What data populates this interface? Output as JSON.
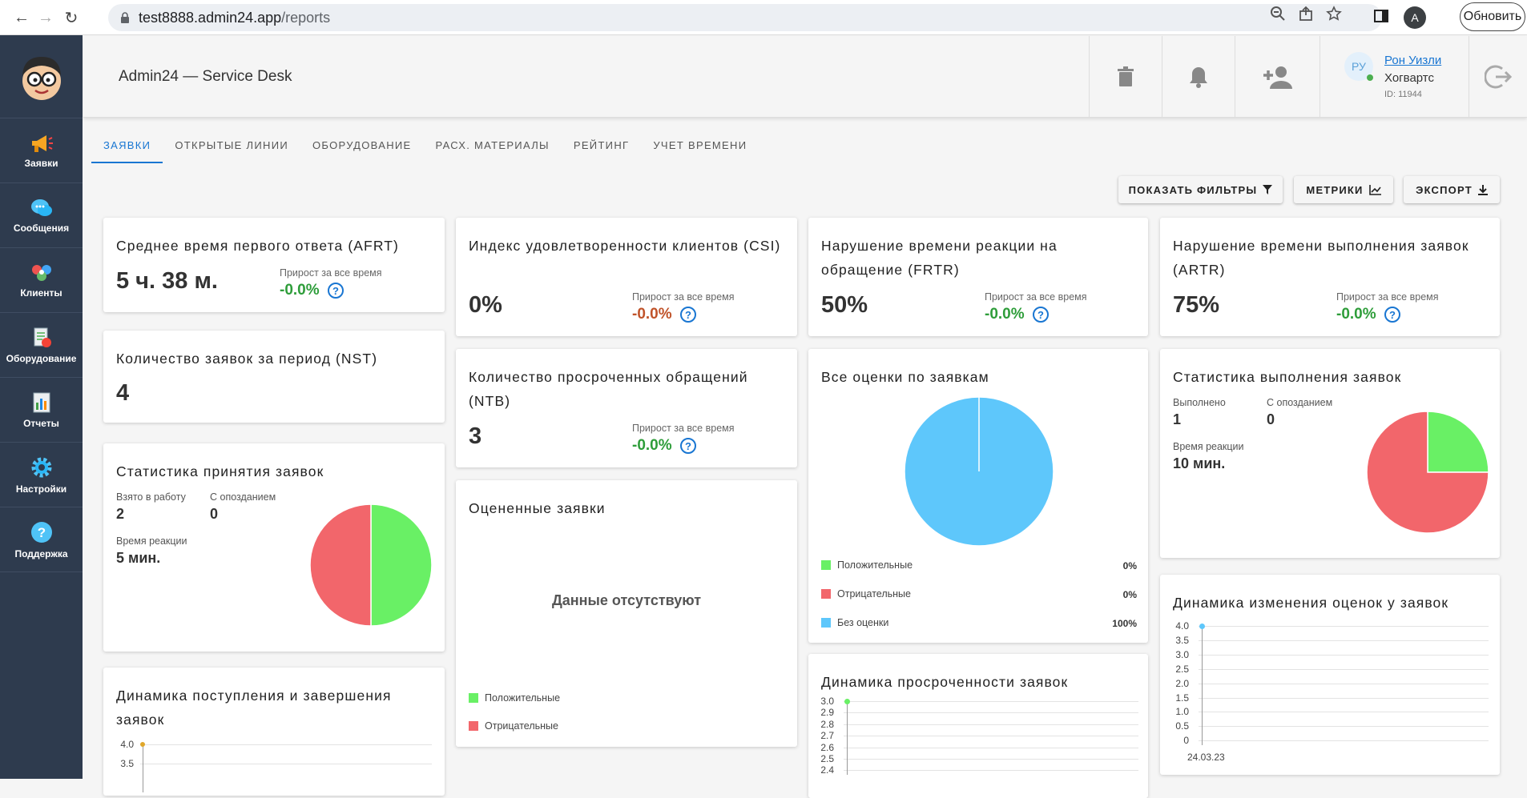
{
  "browser": {
    "url_host": "test8888.admin24.app",
    "url_path": "/reports",
    "update_label": "Обновить",
    "profile_initial": "A"
  },
  "sidebar": {
    "items": [
      {
        "label": "Заявки",
        "icon": "megaphone-icon"
      },
      {
        "label": "Сообщения",
        "icon": "chat-bubbles-icon"
      },
      {
        "label": "Клиенты",
        "icon": "clients-icon"
      },
      {
        "label": "Оборудование",
        "icon": "equipment-icon"
      },
      {
        "label": "Отчеты",
        "icon": "report-chart-icon"
      },
      {
        "label": "Настройки",
        "icon": "gear-icon"
      },
      {
        "label": "Поддержка",
        "icon": "help-icon"
      }
    ]
  },
  "header": {
    "title": "Admin24 — Service Desk",
    "user": {
      "initials": "РУ",
      "name": "Рон Уизли",
      "org": "Хогвартс",
      "id": "ID: 11944"
    }
  },
  "tabs": [
    "ЗАЯВКИ",
    "ОТКРЫТЫЕ ЛИНИИ",
    "ОБОРУДОВАНИЕ",
    "РАСХ. МАТЕРИАЛЫ",
    "РЕЙТИНГ",
    "УЧЕТ ВРЕМЕНИ"
  ],
  "toolbar": {
    "filters": "ПОКАЗАТЬ ФИЛЬТРЫ",
    "metrics": "МЕТРИКИ",
    "export": "ЭКСПОРТ"
  },
  "growth_label": "Прирост за все время",
  "cards": {
    "afrt": {
      "title": "Среднее время первого ответа (AFRT)",
      "value": "5 ч. 38 м.",
      "growth": "-0.0%"
    },
    "csi": {
      "title": "Индекс удовлетворенности клиентов (CSI)",
      "value": "0%",
      "growth": "-0.0%"
    },
    "frtr": {
      "title": "Нарушение времени реакции на обращение (FRTR)",
      "value": "50%",
      "growth": "-0.0%"
    },
    "artr": {
      "title": "Нарушение времени выполнения заявок (ARTR)",
      "value": "75%",
      "growth": "-0.0%"
    },
    "nst": {
      "title": "Количество заявок за период (NST)",
      "value": "4"
    },
    "ntb": {
      "title": "Количество просроченных обращений (NTB)",
      "value": "3",
      "growth": "-0.0%"
    },
    "accept": {
      "title": "Статистика принятия заявок",
      "taken_label": "Взято в работу",
      "taken": "2",
      "late_label": "С опозданием",
      "late": "0",
      "react_label": "Время реакции",
      "react": "5 мин."
    },
    "rated": {
      "title": "Оцененные заявки",
      "empty": "Данные отсутствуют",
      "legend": [
        "Положительные",
        "Отрицательные"
      ]
    },
    "all_ratings": {
      "title": "Все оценки по заявкам",
      "legend": [
        {
          "label": "Положительные",
          "value": "0%"
        },
        {
          "label": "Отрицательные",
          "value": "0%"
        },
        {
          "label": "Без оценки",
          "value": "100%"
        }
      ]
    },
    "exec": {
      "title": "Статистика выполнения заявок",
      "done_label": "Выполнено",
      "done": "1",
      "late_label": "С опозданием",
      "late": "0",
      "react_label": "Время реакции",
      "react": "10 мин."
    },
    "dyn_in": {
      "title": "Динамика поступления и завершения заявок"
    },
    "dyn_over": {
      "title": "Динамика просроченности заявок"
    },
    "dyn_rate": {
      "title": "Динамика изменения оценок у заявок"
    }
  },
  "colors": {
    "positive": "#69f065",
    "negative": "#f2666b",
    "none": "#5ec7fb",
    "accent": "#1976d2"
  },
  "chart_data": [
    {
      "type": "pie",
      "title": "Статистика принятия заявок",
      "labels": [
        "green",
        "red"
      ],
      "values": [
        50,
        50
      ]
    },
    {
      "type": "pie",
      "title": "Все оценки по заявкам",
      "labels": [
        "Положительные",
        "Отрицательные",
        "Без оценки"
      ],
      "values": [
        0,
        0,
        100
      ]
    },
    {
      "type": "pie",
      "title": "Статистика выполнения заявок",
      "labels": [
        "green",
        "red"
      ],
      "values": [
        25,
        75
      ]
    },
    {
      "type": "line",
      "title": "Динамика изменения оценок у заявок",
      "x": [
        "24.03.23"
      ],
      "y": [
        4.0
      ],
      "yticks": [
        "4.0",
        "3.5",
        "3.0",
        "2.5",
        "2.0",
        "1.5",
        "1.0",
        "0.5",
        "0"
      ],
      "ylim": [
        0,
        4
      ]
    },
    {
      "type": "line",
      "title": "Динамика просроченности заявок",
      "yticks": [
        "3.0",
        "2.9",
        "2.8",
        "2.7",
        "2.6",
        "2.5",
        "2.4"
      ],
      "y": [
        3.0
      ]
    },
    {
      "type": "line",
      "title": "Динамика поступления и завершения заявок",
      "yticks": [
        "4.0",
        "3.5"
      ],
      "y": [
        4.0
      ]
    }
  ]
}
